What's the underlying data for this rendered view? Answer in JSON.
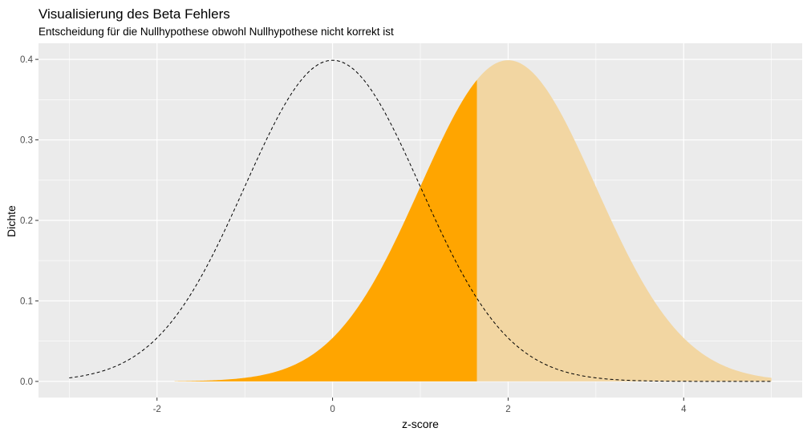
{
  "chart_data": {
    "type": "area",
    "title": "Visualisierung des Beta Fehlers",
    "subtitle": "Entscheidung für die Nullhypothese obwohl Nullhypothese nicht korrekt ist",
    "xlabel": "z-score",
    "ylabel": "Dichte",
    "xlim": [
      -3.35,
      5.35
    ],
    "ylim": [
      -0.02,
      0.42
    ],
    "x_ticks": [
      -2,
      0,
      2,
      4
    ],
    "x_tick_labels": [
      "-2",
      "0",
      "2",
      "4"
    ],
    "y_ticks": [
      0.0,
      0.1,
      0.2,
      0.3,
      0.4
    ],
    "y_tick_labels": [
      "0.0",
      "0.1",
      "0.2",
      "0.3",
      "0.4"
    ],
    "grid": true,
    "panel_background": "#EBEBEB",
    "series": [
      {
        "distribution": "normal",
        "mean": 0,
        "sd": 1,
        "x_range": [
          -3,
          5
        ],
        "style": "dashed-line",
        "color": "#000000"
      },
      {
        "distribution": "normal",
        "mean": 2,
        "sd": 1,
        "x_range": [
          -1.8,
          1.645
        ],
        "style": "filled-area",
        "color": "#FFA500"
      },
      {
        "distribution": "normal",
        "mean": 2,
        "sd": 1,
        "x_range": [
          1.645,
          5
        ],
        "style": "filled-area",
        "color": "#F2D6A2"
      }
    ]
  }
}
